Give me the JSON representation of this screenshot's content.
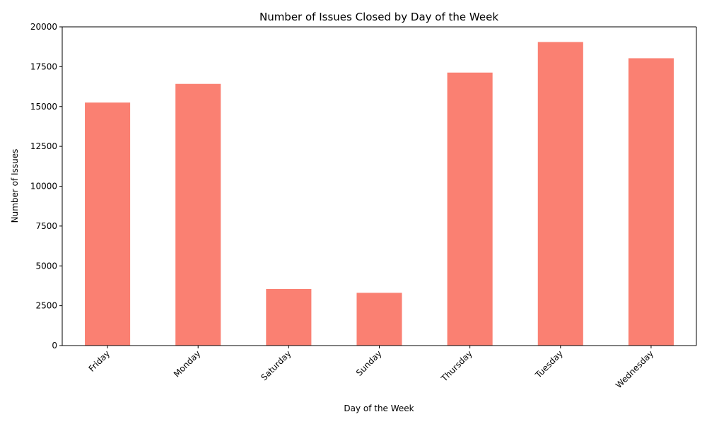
{
  "chart_data": {
    "type": "bar",
    "title": "Number of Issues Closed by Day of the Week",
    "xlabel": "Day of the Week",
    "ylabel": "Number of Issues",
    "categories": [
      "Friday",
      "Monday",
      "Saturday",
      "Sunday",
      "Thursday",
      "Tuesday",
      "Wednesday"
    ],
    "values": [
      15250,
      16420,
      3550,
      3310,
      17130,
      19050,
      18030
    ],
    "ylim": [
      0,
      20000
    ],
    "yticks": [
      0,
      2500,
      5000,
      7500,
      10000,
      12500,
      15000,
      17500,
      20000
    ],
    "bar_color": "#FA8072",
    "grid": false,
    "xtick_rotation": 45
  }
}
